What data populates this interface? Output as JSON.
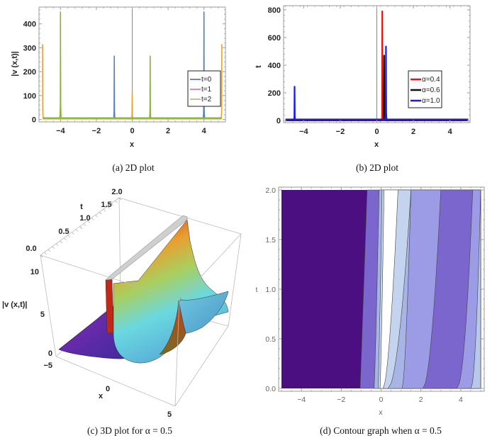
{
  "chart_data": [
    {
      "id": "a",
      "type": "line",
      "caption": "(a)  2D plot",
      "xlabel": "x",
      "ylabel": "|v (x,t)|",
      "xlim": [
        -5.2,
        5.2
      ],
      "ylim": [
        -10,
        470
      ],
      "xticks": [
        -4,
        -2,
        0,
        2,
        4
      ],
      "xtick_labels": [
        "−4",
        "−2",
        "0",
        "2",
        "4"
      ],
      "yticks": [
        0,
        100,
        200,
        300,
        400
      ],
      "ytick_labels": [
        "0",
        "100",
        "200",
        "300",
        "400"
      ],
      "filled": true,
      "legend_position": "right",
      "series": [
        {
          "name": "t=0",
          "legend_label": "t=0",
          "color": "#5b7fbf",
          "legend_color": "#4a5aa8",
          "peaks": [
            {
              "x": -1,
              "y": 265
            },
            {
              "x": 4,
              "y": 450
            }
          ],
          "baseline": 5
        },
        {
          "name": "t=1",
          "legend_label": "t=1",
          "color": "#e8a030",
          "legend_color": "#c8699a",
          "peaks": [
            {
              "x": -5,
              "y": 315
            },
            {
              "x": 0,
              "y": 110
            },
            {
              "x": 5,
              "y": 315
            }
          ],
          "baseline": 3
        },
        {
          "name": "t=2",
          "legend_label": "t=2",
          "color": "#8ab33a",
          "legend_color": "#b8a870",
          "peaks": [
            {
              "x": -4,
              "y": 450
            },
            {
              "x": 1,
              "y": 265
            }
          ],
          "baseline": 7
        }
      ]
    },
    {
      "id": "b",
      "type": "line",
      "caption": "(b)  2D plot",
      "xlabel": "x",
      "ylabel": "t",
      "xlim": [
        -5.1,
        5.1
      ],
      "ylim": [
        -15,
        830
      ],
      "xticks": [
        -4,
        -2,
        0,
        2,
        4
      ],
      "xtick_labels": [
        "−4",
        "−2",
        "0",
        "2",
        "4"
      ],
      "yticks": [
        0,
        200,
        400,
        600,
        800
      ],
      "ytick_labels": [
        "0",
        "200",
        "400",
        "600",
        "800"
      ],
      "filled": true,
      "legend_position": "right",
      "series": [
        {
          "name": "α=0.4",
          "legend_label": "α=0.4",
          "color": "#ee1111",
          "peaks": [
            {
              "x": 0.3,
              "y": 790
            }
          ],
          "baseline": 2
        },
        {
          "name": "α=0.6",
          "legend_label": "α=0.6",
          "color": "#111111",
          "peaks": [
            {
              "x": 0.4,
              "y": 470
            }
          ],
          "baseline": 2
        },
        {
          "name": "α=1.0",
          "legend_label": "α=1.0",
          "color": "#1a1aee",
          "peaks": [
            {
              "x": -4.5,
              "y": 245
            },
            {
              "x": 0.5,
              "y": 535
            }
          ],
          "baseline": 8
        }
      ]
    },
    {
      "id": "c",
      "type": "surface3d",
      "caption": "(c)  3D plot for α = 0.5",
      "xlabel": "x",
      "ylabel": "t",
      "zlabel": "|v (x,t)|",
      "xticks": [
        "−5",
        "0",
        "5"
      ],
      "yticks": [
        "0.0",
        "0.5",
        "1.0",
        "1.5",
        "2.0"
      ],
      "zticks": [
        "0",
        "5",
        "10"
      ],
      "colormap": "rainbow",
      "alpha": 0.5
    },
    {
      "id": "d",
      "type": "contour",
      "caption": "(d)  Contour graph when α = 0.5",
      "xlabel": "x",
      "ylabel": "t",
      "xlim": [
        -5,
        5
      ],
      "ylim": [
        0,
        2
      ],
      "xticks": [
        -4,
        -2,
        0,
        2,
        4
      ],
      "xtick_labels": [
        "−4",
        "−2",
        "0",
        "2",
        "4"
      ],
      "yticks": [
        0,
        0.5,
        1,
        1.5,
        2
      ],
      "ytick_labels": [
        "0.0",
        "0.5",
        "1.0",
        "1.5",
        "2.0"
      ],
      "bands": [
        {
          "level": 1,
          "color": "#4b0f82",
          "x_at_t0": -5.0,
          "x_at_t2": -5.0
        },
        {
          "level": 2,
          "color": "#7a66cc",
          "x_at_t0": -1.05,
          "x_at_t2": -0.7
        },
        {
          "level": 3,
          "color": "#a8b4e6",
          "x_at_t0": -0.35,
          "x_at_t2": -0.1
        },
        {
          "level": 4,
          "color": "#c4d4ee",
          "x_at_t0": -0.15,
          "x_at_t2": 0.05
        },
        {
          "level": 5,
          "color": "#ffffff",
          "x_at_t0": -0.05,
          "x_at_t2": 0.15
        },
        {
          "level": 6,
          "color": "#c4d4ee",
          "x_at_t0": 0.1,
          "x_at_t2": 0.85
        },
        {
          "level": 7,
          "color": "#a8b4e6",
          "x_at_t0": 0.35,
          "x_at_t2": 1.5
        },
        {
          "level": 8,
          "color": "#9c9ce6",
          "x_at_t0": 1.05,
          "x_at_t2": 1.5
        },
        {
          "level": 9,
          "color": "#7a66cc",
          "x_at_t0": 2.1,
          "x_at_t2": 3.0
        },
        {
          "level": 10,
          "color": "#9c9ce6",
          "x_at_t0": 3.8,
          "x_at_t2": 4.6
        },
        {
          "level": 11,
          "color": "#b8c8ea",
          "x_at_t0": 4.5,
          "x_at_t2": 5.0
        }
      ]
    }
  ]
}
